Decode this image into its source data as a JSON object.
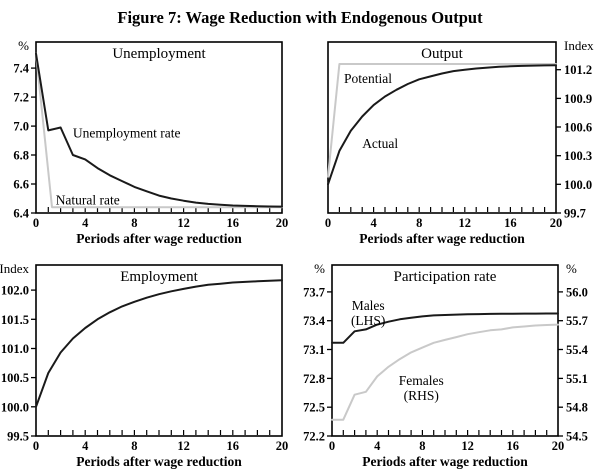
{
  "page_title": "Figure 7: Wage Reduction with Endogenous Output",
  "colors": {
    "dark": "#1a1a1a",
    "light": "#c9c9c9",
    "frame": "#000000",
    "text": "#000000",
    "background": "#ffffff"
  },
  "x_axis": {
    "label": "Periods after wage reduction",
    "min": 0,
    "max": 20,
    "major_ticks": [
      0,
      4,
      8,
      12,
      16,
      20
    ],
    "major_labels": [
      "0",
      "4",
      "8",
      "12",
      "16",
      "20"
    ],
    "minor_tick_step": 1
  },
  "chart_data": [
    {
      "type": "line",
      "position": "top-left",
      "title": "Unemployment",
      "y_left": {
        "unit": "%",
        "min": 6.4,
        "max": 7.58,
        "ticks": [
          7.4,
          7.2,
          7.0,
          6.8,
          6.6,
          6.4
        ],
        "labels": [
          "7.4",
          "7.2",
          "7.0",
          "6.8",
          "6.6",
          "6.4"
        ]
      },
      "series": [
        {
          "name": "Natural rate",
          "shade": "light",
          "x": [
            0,
            1.3,
            20
          ],
          "values": [
            7.5,
            6.44,
            6.44
          ],
          "label": {
            "lines": [
              "Natural rate"
            ],
            "x": 1.6,
            "y": 6.46,
            "anchor": "start"
          }
        },
        {
          "name": "Unemployment rate",
          "shade": "dark",
          "values": [
            7.5,
            6.97,
            6.99,
            6.8,
            6.77,
            6.71,
            6.66,
            6.62,
            6.58,
            6.55,
            6.52,
            6.5,
            6.485,
            6.472,
            6.463,
            6.457,
            6.452,
            6.449,
            6.447,
            6.445,
            6.444
          ],
          "label": {
            "lines": [
              "Unemployment rate"
            ],
            "x": 3.0,
            "y": 6.92,
            "anchor": "start"
          }
        }
      ]
    },
    {
      "type": "line",
      "position": "top-right",
      "title": "Output",
      "y_right": {
        "unit": "Index",
        "min": 99.7,
        "max": 101.49,
        "ticks": [
          101.2,
          100.9,
          100.6,
          100.3,
          100.0,
          99.7
        ],
        "labels": [
          "101.2",
          "100.9",
          "100.6",
          "100.3",
          "100.0",
          "99.7"
        ]
      },
      "series": [
        {
          "name": "Potential",
          "shade": "light",
          "axis": "right",
          "x": [
            0,
            1,
            20
          ],
          "values": [
            100.08,
            101.26,
            101.26
          ],
          "label": {
            "lines": [
              "Potential"
            ],
            "x": 1.4,
            "y": 101.06,
            "anchor": "start"
          }
        },
        {
          "name": "Actual",
          "shade": "dark",
          "axis": "right",
          "values": [
            100.0,
            100.35,
            100.56,
            100.71,
            100.83,
            100.92,
            100.99,
            101.05,
            101.1,
            101.13,
            101.16,
            101.185,
            101.2,
            101.213,
            101.222,
            101.23,
            101.236,
            101.24,
            101.243,
            101.245,
            101.247
          ],
          "label": {
            "lines": [
              "Actual"
            ],
            "x": 3.0,
            "y": 100.38,
            "anchor": "start"
          }
        }
      ]
    },
    {
      "type": "line",
      "position": "bottom-left",
      "title": "Employment",
      "y_left": {
        "unit": "Index",
        "min": 99.5,
        "max": 102.43,
        "ticks": [
          102.0,
          101.5,
          101.0,
          100.5,
          100.0,
          99.5
        ],
        "labels": [
          "102.0",
          "101.5",
          "101.0",
          "100.5",
          "100.0",
          "99.5"
        ]
      },
      "series": [
        {
          "name": "Employment",
          "shade": "dark",
          "values": [
            100.0,
            100.58,
            100.93,
            101.17,
            101.35,
            101.5,
            101.62,
            101.72,
            101.8,
            101.87,
            101.93,
            101.98,
            102.02,
            102.06,
            102.09,
            102.11,
            102.13,
            102.14,
            102.15,
            102.16,
            102.17
          ]
        }
      ]
    },
    {
      "type": "line",
      "position": "bottom-right",
      "title": "Participation rate",
      "y_left": {
        "unit": "%",
        "min": 72.2,
        "max": 73.98,
        "ticks": [
          73.7,
          73.4,
          73.1,
          72.8,
          72.5,
          72.2
        ],
        "labels": [
          "73.7",
          "73.4",
          "73.1",
          "72.8",
          "72.5",
          "72.2"
        ]
      },
      "y_right": {
        "unit": "%",
        "min": 54.5,
        "max": 56.28,
        "ticks": [
          56.0,
          55.7,
          55.4,
          55.1,
          54.8,
          54.5
        ],
        "labels": [
          "56.0",
          "55.7",
          "55.4",
          "55.1",
          "54.8",
          "54.5"
        ]
      },
      "series": [
        {
          "name": "Females (RHS)",
          "shade": "light",
          "axis": "right",
          "values": [
            54.67,
            54.67,
            54.93,
            54.96,
            55.12,
            55.22,
            55.3,
            55.37,
            55.42,
            55.47,
            55.5,
            55.53,
            55.56,
            55.58,
            55.6,
            55.61,
            55.63,
            55.64,
            55.65,
            55.655,
            55.66
          ],
          "label": {
            "lines": [
              "Females",
              "(RHS)"
            ],
            "x": 7.9,
            "y": 55.03,
            "anchor": "middle"
          }
        },
        {
          "name": "Males (LHS)",
          "shade": "dark",
          "values": [
            73.17,
            73.17,
            73.29,
            73.31,
            73.36,
            73.39,
            73.415,
            73.43,
            73.445,
            73.455,
            73.46,
            73.464,
            73.467,
            73.469,
            73.471,
            73.472,
            73.473,
            73.474,
            73.474,
            73.475,
            73.475
          ],
          "label": {
            "lines": [
              "Males",
              "(LHS)"
            ],
            "x": 3.2,
            "y": 73.51,
            "anchor": "middle"
          }
        }
      ]
    }
  ]
}
